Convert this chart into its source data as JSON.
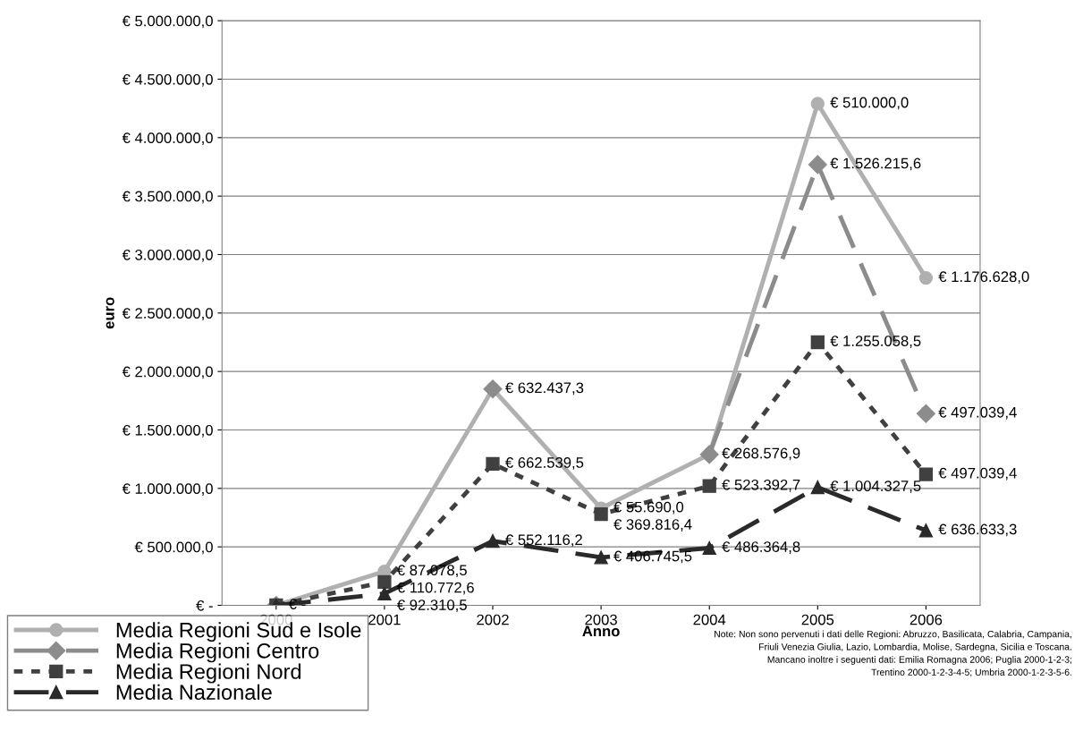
{
  "chart_data": {
    "type": "line",
    "xlabel": "Anno",
    "ylabel": "euro",
    "categories": [
      "2000",
      "2001",
      "2002",
      "2003",
      "2004",
      "2005",
      "2006"
    ],
    "series": [
      {
        "name": "Media Regioni Sud e Isole",
        "color": "#b0b0b0",
        "marker": "circle",
        "line_style": "solid",
        "values": [
          0,
          290000,
          1850000,
          830000,
          1290000,
          4290000,
          2800000
        ]
      },
      {
        "name": "Media Regioni Centro",
        "color": "#8c8c8c",
        "marker": "diamond",
        "line_style": "dashed",
        "values": [
          0,
          null,
          1850000,
          null,
          1290000,
          3770000,
          1640000
        ]
      },
      {
        "name": "Media Regioni Nord",
        "color": "#404040",
        "marker": "square",
        "line_style": "dotted",
        "values": [
          0,
          200000,
          1210000,
          780000,
          1020000,
          2250000,
          1120000
        ]
      },
      {
        "name": "Media Nazionale",
        "color": "#2a2a2a",
        "marker": "triangle",
        "line_style": "dashed",
        "values": [
          0,
          100000,
          550000,
          410000,
          490000,
          1010000,
          640000
        ]
      }
    ],
    "ylim": [
      0,
      5000000
    ],
    "yticks": [
      {
        "value": 0,
        "label": "€ -"
      },
      {
        "value": 500000,
        "label": "€ 500.000,0"
      },
      {
        "value": 1000000,
        "label": "€ 1.000.000,0"
      },
      {
        "value": 1500000,
        "label": "€ 1.500.000,0"
      },
      {
        "value": 2000000,
        "label": "€ 2.000.000,0"
      },
      {
        "value": 2500000,
        "label": "€ 2.500.000,0"
      },
      {
        "value": 3000000,
        "label": "€ 3.000.000,0"
      },
      {
        "value": 3500000,
        "label": "€ 3.500.000,0"
      },
      {
        "value": 4000000,
        "label": "€ 4.000.000,0"
      },
      {
        "value": 4500000,
        "label": "€ 4.500.000,0"
      },
      {
        "value": 5000000,
        "label": "€ 5.000.000,0"
      }
    ],
    "grid": "y",
    "legend": "bottom left",
    "annotations": [
      {
        "text": "€ 87.078,5",
        "x": "2001",
        "y": 290000
      },
      {
        "text": "€ 632.437,3",
        "x": "2002",
        "y": 1850000
      },
      {
        "text": "€ 55.690,0",
        "x": "2003",
        "y": 830000
      },
      {
        "text": "€ 268.576,9",
        "x": "2004",
        "y": 1290000
      },
      {
        "text": "€ 510.000,0",
        "x": "2005",
        "y": 4290000
      },
      {
        "text": "€ 1.176.628,0",
        "x": "2006",
        "y": 2800000
      },
      {
        "text": "€ 1.526.215,6",
        "x": "2005",
        "y": 3770000
      },
      {
        "text": "€ 497.039,4",
        "x": "2006",
        "y": 1640000
      },
      {
        "text": "€ 110.772,6",
        "x": "2001",
        "y": 200000
      },
      {
        "text": "€ 662.539,5",
        "x": "2002",
        "y": 1210000
      },
      {
        "text": "€ 369.816,4",
        "x": "2003",
        "y": 780000
      },
      {
        "text": "€ 523.392,7",
        "x": "2004",
        "y": 1020000
      },
      {
        "text": "€ 1.255.058,5",
        "x": "2005",
        "y": 2250000
      },
      {
        "text": "€ 497.039,4",
        "x": "2006",
        "y": 1120000
      },
      {
        "text": "€ -",
        "x": "2000",
        "y": 0
      },
      {
        "text": "€ 92.310,5",
        "x": "2001",
        "y": 100000
      },
      {
        "text": "€ 552.116,2",
        "x": "2002",
        "y": 550000
      },
      {
        "text": "€ 406.745,5",
        "x": "2003",
        "y": 410000
      },
      {
        "text": "€ 486.364,8",
        "x": "2004",
        "y": 490000
      },
      {
        "text": "€ 1.004.327,5",
        "x": "2005",
        "y": 1010000
      },
      {
        "text": "€ 636.633,3",
        "x": "2006",
        "y": 640000
      },
      "Note: Non sono pervenuti i dati delle Regioni: Abruzzo, Basilicata, Calabria, Campania,\nFriuli Venezia Giulia, Lazio, Lombardia, Molise, Sardegna, Sicilia e Toscana.\nMancano inoltre i seguenti dati: Emilia Romagna 2006; Puglia 2000-1-2-3;\nTrentino 2000-1-2-3-4-5; Umbria 2000-1-2-3-5-6."
    ]
  }
}
